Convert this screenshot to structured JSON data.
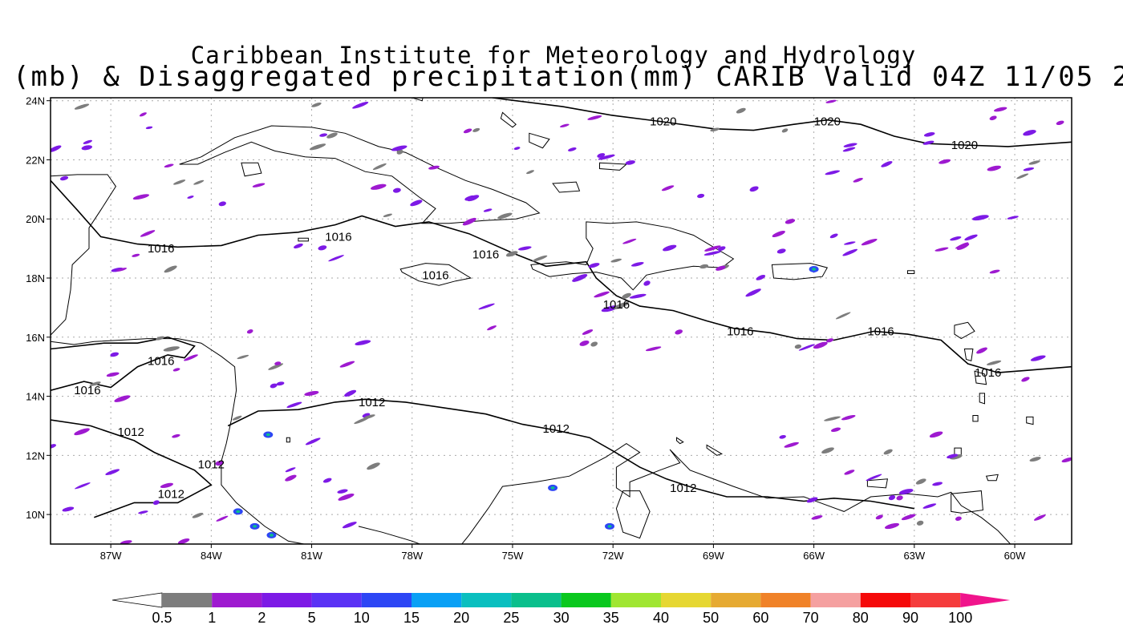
{
  "title": {
    "line1": "Caribbean Institute for Meteorology and Hydrology",
    "line2": "(mb) & Disaggregated precipitation(mm) CARIB Valid 04Z 11/05 2"
  },
  "axes": {
    "lon_labels": [
      "87W",
      "84W",
      "81W",
      "78W",
      "75W",
      "72W",
      "69W",
      "66W",
      "63W",
      "60W"
    ],
    "lon_values": [
      -87,
      -84,
      -81,
      -78,
      -75,
      -72,
      -69,
      -66,
      -63,
      -60
    ],
    "lat_labels": [
      "24N",
      "22N",
      "20N",
      "18N",
      "16N",
      "14N",
      "12N",
      "10N"
    ],
    "lat_values": [
      24,
      22,
      20,
      18,
      16,
      14,
      12,
      10
    ],
    "lon_range": [
      -88.8,
      -58.3
    ],
    "lat_range": [
      9.0,
      24.1
    ]
  },
  "isobars": [
    {
      "value": "1020",
      "lon": -70.5,
      "lat": 23.3
    },
    {
      "value": "1020",
      "lon": -65.6,
      "lat": 23.3
    },
    {
      "value": "1020",
      "lon": -61.5,
      "lat": 22.5
    },
    {
      "value": "1016",
      "lon": -85.5,
      "lat": 19.0
    },
    {
      "value": "1016",
      "lon": -80.2,
      "lat": 19.4
    },
    {
      "value": "1016",
      "lon": -75.8,
      "lat": 18.8
    },
    {
      "value": "1016",
      "lon": -77.3,
      "lat": 18.1
    },
    {
      "value": "1016",
      "lon": -71.9,
      "lat": 17.1
    },
    {
      "value": "1016",
      "lon": -68.2,
      "lat": 16.2
    },
    {
      "value": "1016",
      "lon": -64.0,
      "lat": 16.2
    },
    {
      "value": "1016",
      "lon": -60.8,
      "lat": 14.8
    },
    {
      "value": "1016",
      "lon": -85.5,
      "lat": 15.2
    },
    {
      "value": "1016",
      "lon": -87.7,
      "lat": 14.2
    },
    {
      "value": "1012",
      "lon": -79.2,
      "lat": 13.8
    },
    {
      "value": "1012",
      "lon": -73.7,
      "lat": 12.9
    },
    {
      "value": "1012",
      "lon": -69.9,
      "lat": 10.9
    },
    {
      "value": "1012",
      "lon": -86.4,
      "lat": 12.8
    },
    {
      "value": "1012",
      "lon": -84.0,
      "lat": 11.7
    },
    {
      "value": "1012",
      "lon": -85.2,
      "lat": 10.7
    }
  ],
  "colorbar": {
    "labels": [
      "0.5",
      "1",
      "2",
      "5",
      "10",
      "15",
      "20",
      "25",
      "30",
      "35",
      "40",
      "50",
      "60",
      "70",
      "80",
      "90",
      "100"
    ],
    "colors": [
      "#7d7d7d",
      "#9e1ad0",
      "#7d1ae6",
      "#5a32f5",
      "#2d46f5",
      "#0aa0f5",
      "#0abfbf",
      "#0abf8c",
      "#0ac81e",
      "#a0e632",
      "#e6d732",
      "#e6aa32",
      "#f08228",
      "#f5a0a0",
      "#f50a0a",
      "#f53c3c"
    ],
    "low_color": "#ffffff",
    "high_color": "#f0148c"
  },
  "precip_colors": {
    "light": "#9e1ad0",
    "moderate": "#7d1ae6",
    "trace": "#7d7d7d",
    "heavy": "#2d46f5",
    "extreme": "#0abf8c"
  }
}
